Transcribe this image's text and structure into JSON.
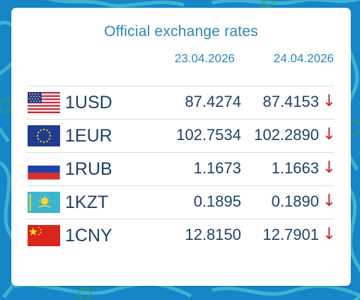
{
  "widget": {
    "title": "Official exchange rates",
    "dates": [
      "23.04.2026",
      "24.04.2026"
    ]
  },
  "rates": [
    {
      "flag": "flag-us-icon",
      "code": "1USD",
      "v1": "87.4274",
      "v2": "87.4153",
      "trend": "↓"
    },
    {
      "flag": "flag-eu-icon",
      "code": "1EUR",
      "v1": "102.7534",
      "v2": "102.2890",
      "trend": "↓"
    },
    {
      "flag": "flag-ru-icon",
      "code": "1RUB",
      "v1": "1.1673",
      "v2": "1.1663",
      "trend": "↓"
    },
    {
      "flag": "flag-kz-icon",
      "code": "1KZT",
      "v1": "0.1895",
      "v2": "0.1890",
      "trend": "↓"
    },
    {
      "flag": "flag-cn-icon",
      "code": "1CNY",
      "v1": "12.8150",
      "v2": "12.7901",
      "trend": "↓"
    }
  ],
  "colors": {
    "background": "#1686c9",
    "heading": "#2a86bd",
    "text": "#1f4068",
    "trend_down": "#c42a2a"
  }
}
